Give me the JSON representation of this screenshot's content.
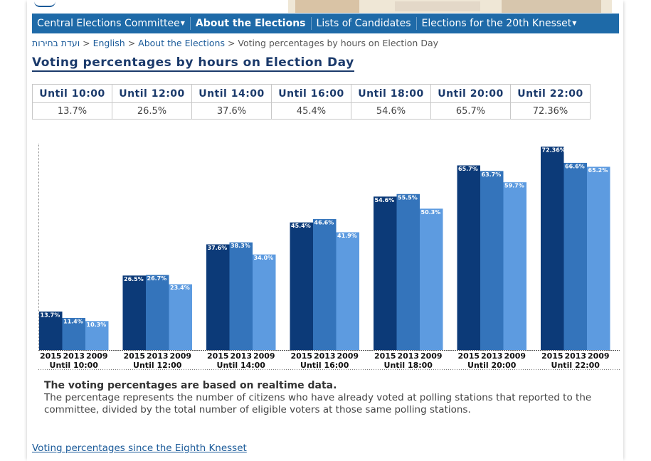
{
  "nav": [
    {
      "label": "Central Elections Committee",
      "dropdown": true,
      "active": false
    },
    {
      "label": "About the Elections",
      "dropdown": false,
      "active": true
    },
    {
      "label": "Lists of Candidates",
      "dropdown": false,
      "active": false
    },
    {
      "label": "Elections for the 20th Knesset",
      "dropdown": true,
      "active": false
    }
  ],
  "breadcrumb": {
    "home": "ועדת בחירות",
    "sep": ">",
    "english": "English",
    "about": "About the Elections",
    "current": "Voting percentages by hours on Election Day"
  },
  "page_title": "Voting percentages by hours on Election Day",
  "table": {
    "headers": [
      "Until 10:00",
      "Until 12:00",
      "Until 14:00",
      "Until 16:00",
      "Until 18:00",
      "Until 20:00",
      "Until 22:00"
    ],
    "values": [
      "13.7%",
      "26.5%",
      "37.6%",
      "45.4%",
      "54.6%",
      "65.7%",
      "72.36%"
    ]
  },
  "chart_data": {
    "type": "bar",
    "title": "",
    "categories": [
      "Until 10:00",
      "Until 12:00",
      "Until 14:00",
      "Until 16:00",
      "Until 18:00",
      "Until 20:00",
      "Until 22:00"
    ],
    "series": [
      {
        "name": "2015",
        "values": [
          13.7,
          26.5,
          37.6,
          45.4,
          54.6,
          65.7,
          72.36
        ],
        "labels": [
          "13.7%",
          "26.5%",
          "37.6%",
          "45.4%",
          "54.6%",
          "65.7%",
          "72.36%"
        ],
        "color": "#0c3a78"
      },
      {
        "name": "2013",
        "values": [
          11.4,
          26.7,
          38.3,
          46.6,
          55.5,
          63.7,
          66.6
        ],
        "labels": [
          "11.4%",
          "26.7%",
          "38.3%",
          "46.6%",
          "55.5%",
          "63.7%",
          "66.6%"
        ],
        "color": "#3474bb"
      },
      {
        "name": "2009",
        "values": [
          10.3,
          23.4,
          34.0,
          41.9,
          50.3,
          59.7,
          65.2
        ],
        "labels": [
          "10.3%",
          "23.4%",
          "34.0%",
          "41.9%",
          "50.3%",
          "59.7%",
          "65.2%"
        ],
        "color": "#5d9be0"
      }
    ],
    "ylim": [
      0,
      75
    ],
    "grid": false,
    "legend": "none"
  },
  "notes": {
    "bold": "The voting percentages are based on realtime data.",
    "text": "The percentage represents the number of citizens who have already voted at polling stations that reported to the committee, divided by the total number of eligible voters at those same polling stations."
  },
  "link_since": "Voting percentages since the Eighth Knesset"
}
